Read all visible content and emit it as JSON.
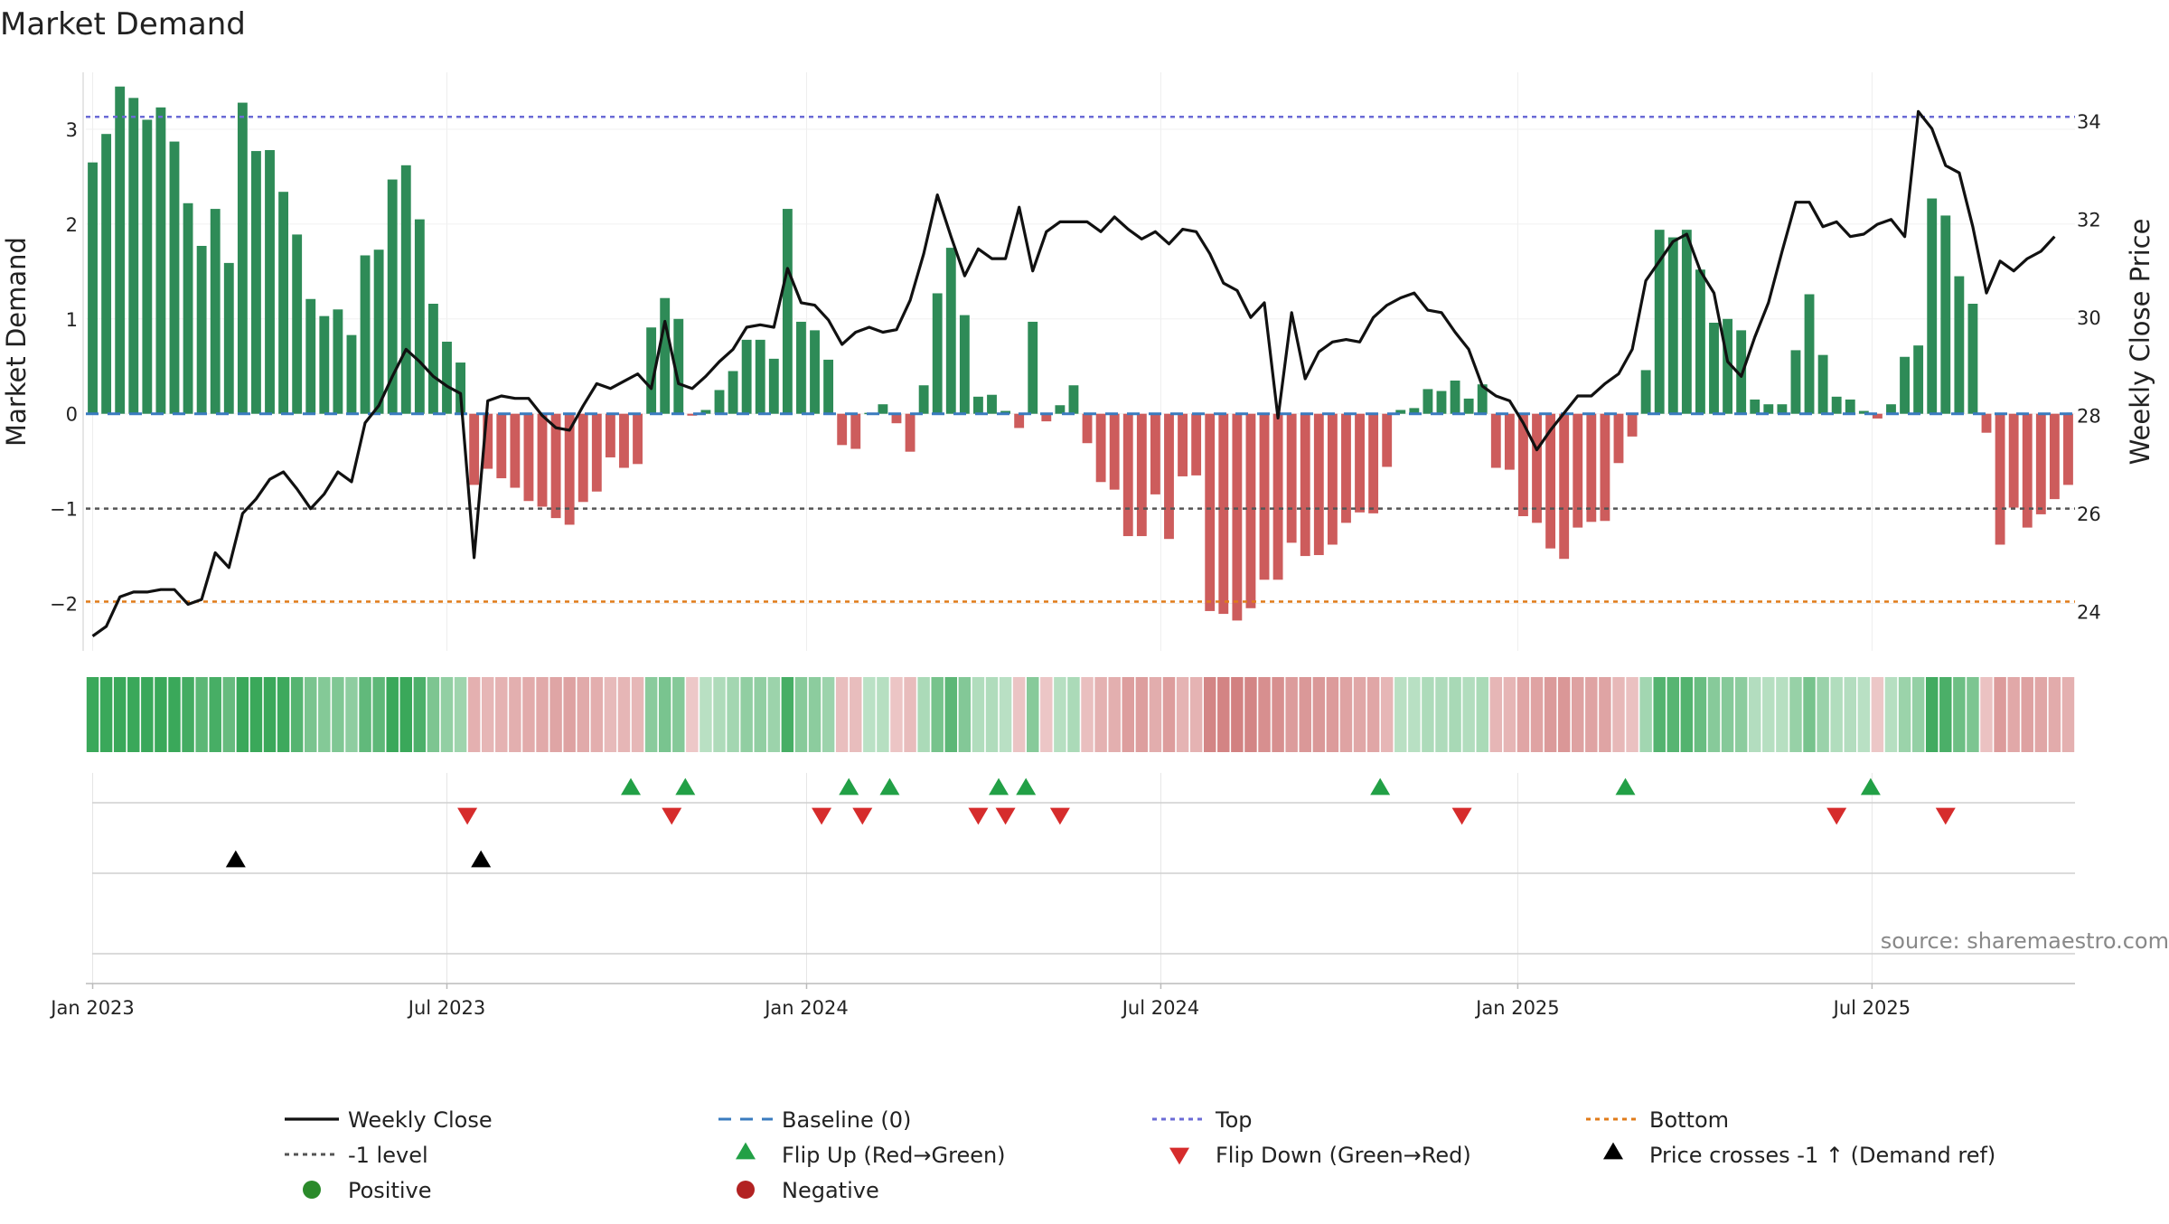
{
  "chart_data": {
    "type": "bar",
    "title": "Market Demand",
    "ylabel": "Market Demand",
    "y2label": "Weekly Close Price",
    "ylim": [
      -2.5,
      3.6
    ],
    "y2lim": [
      23.2,
      35.0
    ],
    "yticks": [
      3,
      2,
      1,
      0,
      -1,
      -2
    ],
    "y2ticks": [
      34,
      32,
      30,
      28,
      26,
      24
    ],
    "x_start": "2023-01-02",
    "x_ticks": [
      {
        "label": "Jan 2023",
        "week": 0.0
      },
      {
        "label": "Jul 2023",
        "week": 26.0
      },
      {
        "label": "Jan 2024",
        "week": 52.4
      },
      {
        "label": "Jul 2024",
        "week": 78.4
      },
      {
        "label": "Jan 2025",
        "week": 104.6
      },
      {
        "label": "Jul 2025",
        "week": 130.6
      }
    ],
    "reference_lines": {
      "baseline": 0,
      "top": 3.13,
      "minus_one": -1,
      "bottom": -1.98
    },
    "demand": [
      2.65,
      2.95,
      3.45,
      3.33,
      3.1,
      3.23,
      2.87,
      2.22,
      1.77,
      2.16,
      1.59,
      3.28,
      2.77,
      2.78,
      2.34,
      1.89,
      1.21,
      1.03,
      1.1,
      0.83,
      1.67,
      1.73,
      2.47,
      2.62,
      2.05,
      1.16,
      0.76,
      0.54,
      -0.75,
      -0.58,
      -0.68,
      -0.78,
      -0.92,
      -0.98,
      -1.1,
      -1.17,
      -0.93,
      -0.82,
      -0.46,
      -0.57,
      -0.53,
      0.91,
      1.22,
      1.0,
      -0.02,
      0.04,
      0.25,
      0.45,
      0.78,
      0.78,
      0.58,
      2.16,
      0.97,
      0.88,
      0.57,
      -0.33,
      -0.37,
      0.01,
      0.1,
      -0.1,
      -0.4,
      0.3,
      1.27,
      1.75,
      1.04,
      0.18,
      0.2,
      0.03,
      -0.15,
      0.97,
      -0.08,
      0.09,
      0.3,
      -0.31,
      -0.72,
      -0.8,
      -1.29,
      -1.29,
      -0.85,
      -1.32,
      -0.66,
      -0.65,
      -2.08,
      -2.11,
      -2.18,
      -2.05,
      -1.75,
      -1.75,
      -1.36,
      -1.5,
      -1.49,
      -1.38,
      -1.15,
      -1.04,
      -1.05,
      -0.56,
      0.04,
      0.06,
      0.26,
      0.24,
      0.35,
      0.16,
      0.31,
      -0.57,
      -0.59,
      -1.08,
      -1.15,
      -1.42,
      -1.53,
      -1.2,
      -1.14,
      -1.13,
      -0.52,
      -0.24,
      0.46,
      1.94,
      1.86,
      1.94,
      1.52,
      0.96,
      1.0,
      0.88,
      0.15,
      0.1,
      0.1,
      0.67,
      1.26,
      0.62,
      0.18,
      0.15,
      0.03,
      -0.05,
      0.1,
      0.6,
      0.72,
      2.27,
      2.09,
      1.45,
      1.16,
      -0.2,
      -1.38,
      -0.99,
      -1.2,
      -1.06,
      -0.9,
      -0.75
    ],
    "close": [
      23.5,
      23.7,
      24.3,
      24.4,
      24.4,
      24.45,
      24.45,
      24.15,
      24.25,
      25.2,
      24.9,
      26.0,
      26.3,
      26.7,
      26.85,
      26.5,
      26.1,
      26.4,
      26.85,
      26.65,
      27.85,
      28.2,
      28.8,
      29.35,
      29.1,
      28.8,
      28.6,
      28.45,
      25.1,
      28.3,
      28.4,
      28.35,
      28.35,
      28.0,
      27.75,
      27.7,
      28.2,
      28.65,
      28.55,
      28.7,
      28.85,
      28.55,
      29.92,
      28.65,
      28.55,
      28.8,
      29.1,
      29.35,
      29.8,
      29.85,
      29.8,
      31.0,
      30.3,
      30.25,
      29.95,
      29.45,
      29.7,
      29.8,
      29.7,
      29.75,
      30.35,
      31.3,
      32.5,
      31.65,
      30.85,
      31.4,
      31.2,
      31.2,
      32.25,
      30.95,
      31.75,
      31.95,
      31.95,
      31.95,
      31.75,
      32.05,
      31.8,
      31.6,
      31.75,
      31.5,
      31.8,
      31.75,
      31.3,
      30.7,
      30.55,
      30.0,
      30.3,
      27.95,
      30.1,
      28.75,
      29.3,
      29.5,
      29.55,
      29.5,
      30.0,
      30.25,
      30.4,
      30.5,
      30.15,
      30.1,
      29.7,
      29.35,
      28.6,
      28.4,
      28.3,
      27.85,
      27.3,
      27.7,
      28.05,
      28.4,
      28.4,
      28.65,
      28.85,
      29.35,
      30.75,
      31.15,
      31.55,
      31.7,
      30.95,
      30.5,
      29.1,
      28.8,
      29.6,
      30.3,
      31.35,
      32.35,
      32.35,
      31.85,
      31.95,
      31.65,
      31.7,
      31.9,
      32.0,
      31.65,
      34.2,
      33.85,
      33.1,
      32.95,
      31.85,
      30.5,
      31.15,
      30.95,
      31.2,
      31.35,
      31.65
    ],
    "flip_up_weeks": [
      39.5,
      43.5,
      55.5,
      58.5,
      66.5,
      68.5,
      94.5,
      112.5,
      130.5
    ],
    "flip_down_weeks": [
      27.5,
      42.5,
      53.5,
      56.5,
      65.0,
      67.0,
      71.0,
      100.5,
      128.0,
      136.0
    ],
    "price_cross_weeks": [
      10.5,
      28.5
    ],
    "legend": [
      {
        "label": "Weekly Close",
        "kind": "line",
        "color": "#111111"
      },
      {
        "label": "Baseline (0)",
        "kind": "dash",
        "color": "#3a7bbf"
      },
      {
        "label": "Top",
        "kind": "dot",
        "color": "#6b6bd6"
      },
      {
        "label": "Bottom",
        "kind": "dot",
        "color": "#e07b1a"
      },
      {
        "label": "-1 level",
        "kind": "dot",
        "color": "#555555"
      },
      {
        "label": "Flip Up (Red→Green)",
        "kind": "tri-up",
        "color": "#22a046"
      },
      {
        "label": "Flip Down (Green→Red)",
        "kind": "tri-down",
        "color": "#d62c2c"
      },
      {
        "label": "Price crosses -1 ↑ (Demand ref)",
        "kind": "tri-up",
        "color": "#000000"
      },
      {
        "label": "Positive",
        "kind": "circle",
        "color": "#2a8a2a"
      },
      {
        "label": "Negative",
        "kind": "circle",
        "color": "#b22222"
      }
    ],
    "source": "source: sharemaestro.com",
    "colors": {
      "positive_bar": "#2e8b57",
      "negative_bar": "#cd5c5c",
      "close_line": "#111111"
    }
  }
}
